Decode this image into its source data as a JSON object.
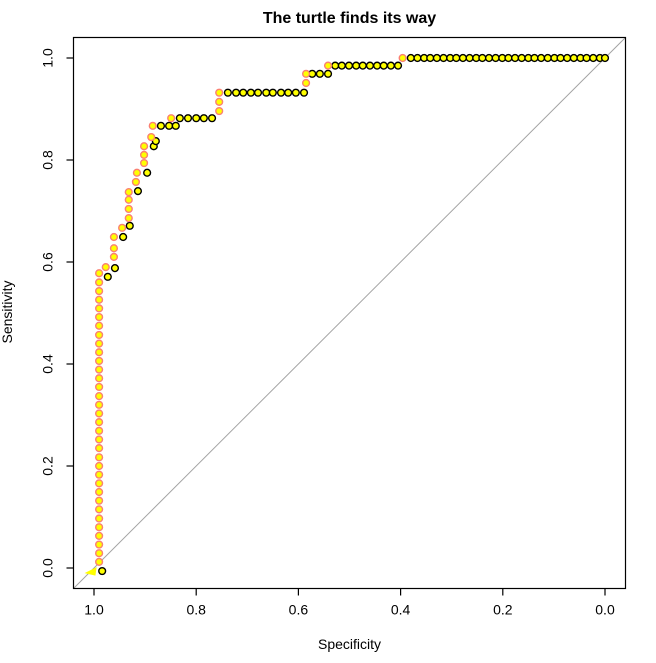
{
  "chart_data": {
    "type": "scatter",
    "title": "The turtle finds its way",
    "xlabel": "Specificity",
    "ylabel": "Sensitivity",
    "x_axis": {
      "ticks": [
        1.0,
        0.8,
        0.6,
        0.4,
        0.2,
        0.0
      ],
      "tick_labels": [
        "1.0",
        "0.8",
        "0.6",
        "0.4",
        "0.2",
        "0.0"
      ],
      "range": [
        1.04,
        -0.04
      ],
      "reversed": true
    },
    "y_axis": {
      "ticks": [
        0.0,
        0.2,
        0.4,
        0.6,
        0.8,
        1.0
      ],
      "tick_labels": [
        "0.0",
        "0.2",
        "0.4",
        "0.6",
        "0.8",
        "1.0"
      ],
      "range": [
        -0.04,
        1.04
      ],
      "tick_labels_rotated": true
    },
    "grid": false,
    "legend": "none",
    "diagonal_reference_line": {
      "from": [
        1.04,
        -0.04
      ],
      "to": [
        -0.04,
        1.04
      ],
      "color": "#a3a3a3"
    },
    "start_marker": {
      "shape": "triangle",
      "specificity": 1.0,
      "sensitivity": 0.0,
      "color": "#ffff00"
    },
    "point_style": {
      "radius": 3.4,
      "fill": "#ffff00"
    },
    "series": [
      {
        "name": "roc-points-black",
        "marker": "circle",
        "stroke": "#000000",
        "fill": "#ffff00",
        "points": [
          [
            0.984,
            -0.006
          ],
          [
            0.973,
            0.571
          ],
          [
            0.959,
            0.588
          ],
          [
            0.943,
            0.649
          ],
          [
            0.93,
            0.671
          ],
          [
            0.914,
            0.739
          ],
          [
            0.896,
            0.775
          ],
          [
            0.883,
            0.827
          ],
          [
            0.879,
            0.837
          ],
          [
            0.869,
            0.867
          ],
          [
            0.853,
            0.867
          ],
          [
            0.84,
            0.867
          ],
          [
            0.832,
            0.882
          ],
          [
            0.816,
            0.882
          ],
          [
            0.8,
            0.882
          ],
          [
            0.785,
            0.882
          ],
          [
            0.769,
            0.882
          ],
          [
            0.738,
            0.932
          ],
          [
            0.722,
            0.932
          ],
          [
            0.708,
            0.932
          ],
          [
            0.693,
            0.932
          ],
          [
            0.679,
            0.932
          ],
          [
            0.663,
            0.932
          ],
          [
            0.65,
            0.932
          ],
          [
            0.634,
            0.932
          ],
          [
            0.62,
            0.932
          ],
          [
            0.605,
            0.932
          ],
          [
            0.589,
            0.932
          ],
          [
            0.573,
            0.969
          ],
          [
            0.558,
            0.969
          ],
          [
            0.542,
            0.969
          ],
          [
            0.528,
            0.985
          ],
          [
            0.515,
            0.985
          ],
          [
            0.501,
            0.985
          ],
          [
            0.487,
            0.985
          ],
          [
            0.474,
            0.985
          ],
          [
            0.46,
            0.985
          ],
          [
            0.446,
            0.985
          ],
          [
            0.433,
            0.985
          ],
          [
            0.419,
            0.985
          ],
          [
            0.405,
            0.985
          ],
          [
            0.38,
            1.0
          ],
          [
            0.367,
            1.0
          ],
          [
            0.354,
            1.0
          ],
          [
            0.342,
            1.0
          ],
          [
            0.329,
            1.0
          ],
          [
            0.316,
            1.0
          ],
          [
            0.303,
            1.0
          ],
          [
            0.291,
            1.0
          ],
          [
            0.278,
            1.0
          ],
          [
            0.265,
            1.0
          ],
          [
            0.252,
            1.0
          ],
          [
            0.24,
            1.0
          ],
          [
            0.227,
            1.0
          ],
          [
            0.214,
            1.0
          ],
          [
            0.201,
            1.0
          ],
          [
            0.189,
            1.0
          ],
          [
            0.176,
            1.0
          ],
          [
            0.163,
            1.0
          ],
          [
            0.15,
            1.0
          ],
          [
            0.138,
            1.0
          ],
          [
            0.125,
            1.0
          ],
          [
            0.112,
            1.0
          ],
          [
            0.099,
            1.0
          ],
          [
            0.087,
            1.0
          ],
          [
            0.074,
            1.0
          ],
          [
            0.061,
            1.0
          ],
          [
            0.048,
            1.0
          ],
          [
            0.036,
            1.0
          ],
          [
            0.023,
            1.0
          ],
          [
            0.01,
            1.0
          ],
          [
            0.0,
            1.0
          ]
        ]
      },
      {
        "name": "roc-points-pink",
        "marker": "circle",
        "stroke": "#fa8072",
        "fill": "#ffff00",
        "points": [
          [
            0.99,
            0.012
          ],
          [
            0.99,
            0.029
          ],
          [
            0.99,
            0.046
          ],
          [
            0.99,
            0.063
          ],
          [
            0.99,
            0.08
          ],
          [
            0.99,
            0.097
          ],
          [
            0.99,
            0.115
          ],
          [
            0.99,
            0.132
          ],
          [
            0.99,
            0.149
          ],
          [
            0.99,
            0.166
          ],
          [
            0.99,
            0.183
          ],
          [
            0.99,
            0.2
          ],
          [
            0.99,
            0.217
          ],
          [
            0.99,
            0.235
          ],
          [
            0.99,
            0.252
          ],
          [
            0.99,
            0.269
          ],
          [
            0.99,
            0.286
          ],
          [
            0.99,
            0.303
          ],
          [
            0.99,
            0.32
          ],
          [
            0.99,
            0.337
          ],
          [
            0.99,
            0.355
          ],
          [
            0.99,
            0.372
          ],
          [
            0.99,
            0.389
          ],
          [
            0.99,
            0.406
          ],
          [
            0.99,
            0.423
          ],
          [
            0.99,
            0.44
          ],
          [
            0.99,
            0.457
          ],
          [
            0.99,
            0.475
          ],
          [
            0.99,
            0.492
          ],
          [
            0.99,
            0.509
          ],
          [
            0.99,
            0.526
          ],
          [
            0.99,
            0.543
          ],
          [
            0.99,
            0.56
          ],
          [
            0.99,
            0.578
          ],
          [
            0.977,
            0.59
          ],
          [
            0.961,
            0.61
          ],
          [
            0.961,
            0.627
          ],
          [
            0.961,
            0.649
          ],
          [
            0.945,
            0.667
          ],
          [
            0.932,
            0.686
          ],
          [
            0.932,
            0.704
          ],
          [
            0.932,
            0.722
          ],
          [
            0.932,
            0.737
          ],
          [
            0.918,
            0.757
          ],
          [
            0.916,
            0.775
          ],
          [
            0.902,
            0.794
          ],
          [
            0.902,
            0.81
          ],
          [
            0.902,
            0.827
          ],
          [
            0.888,
            0.845
          ],
          [
            0.885,
            0.867
          ],
          [
            0.849,
            0.882
          ],
          [
            0.755,
            0.896
          ],
          [
            0.755,
            0.914
          ],
          [
            0.755,
            0.932
          ],
          [
            0.585,
            0.951
          ],
          [
            0.585,
            0.969
          ],
          [
            0.542,
            0.985
          ],
          [
            0.396,
            1.0
          ]
        ]
      }
    ]
  }
}
